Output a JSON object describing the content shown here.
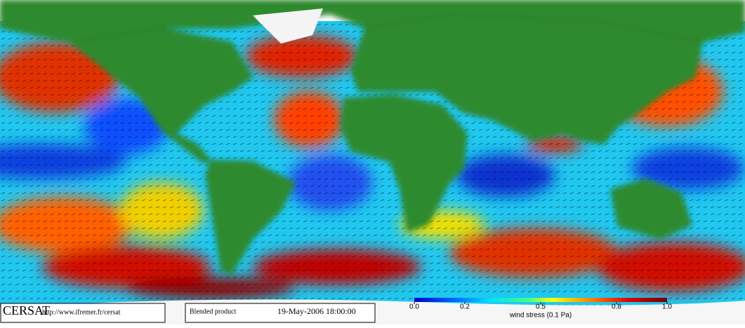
{
  "footer": {
    "logo": "CERSAT",
    "url": "http://www.ifremer.fr/cersat",
    "product": "Blended product",
    "date": "19-May-2006 18:00:00"
  },
  "colorbar": {
    "label": "wind stress (0.1 Pa)",
    "range": [
      0,
      1
    ],
    "ticks": [
      {
        "value": 0,
        "label": "0.0"
      },
      0.2,
      0.5,
      0.8,
      {
        "value": 1,
        "label": "1.0"
      }
    ]
  }
}
